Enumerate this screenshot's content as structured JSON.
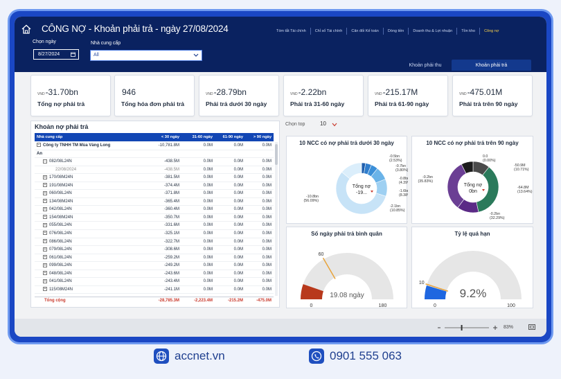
{
  "header": {
    "title": "CÔNG NỢ - Khoản phải trả - ngày 27/08/2024",
    "nav_tabs": [
      "Tóm tắt Tài chính",
      "Chỉ số Tài chính",
      "Cân đối Kế toán",
      "Dòng tiền",
      "Doanh thu & Lợi nhuận",
      "Tồn kho",
      "Công nợ"
    ]
  },
  "filters": {
    "date_label": "Chọn ngày",
    "date_value": "8/27/2024",
    "supplier_label": "Nhà cung cấp",
    "supplier_value": "All"
  },
  "subtabs": {
    "receivable": "Khoản phải thu",
    "payable": "Khoản phải trả"
  },
  "kpis": [
    {
      "unit": "VND",
      "value": "-31.70bn",
      "label": "Tổng nợ phải trả"
    },
    {
      "unit": "",
      "value": "946",
      "label": "Tổng hóa đơn phải trả"
    },
    {
      "unit": "VND",
      "value": "-28.79bn",
      "label": "Phải trả dưới 30 ngày"
    },
    {
      "unit": "VND",
      "value": "-2.22bn",
      "label": "Phải trả 31-60 ngày"
    },
    {
      "unit": "VND",
      "value": "-215.17M",
      "label": "Phải trả 61-90 ngày"
    },
    {
      "unit": "VND",
      "value": "-475.01M",
      "label": "Phải trả trên 90 ngày"
    }
  ],
  "table": {
    "title": "Khoản nợ phải trả",
    "columns": [
      "Nhà cung cấp",
      "< 30 ngày",
      "31-60 ngày",
      "61-90 ngày",
      "> 90 ngày"
    ],
    "rows": [
      {
        "level": 0,
        "icon": "−",
        "cells": [
          "Công ty TNHH TM Mùa Vàng Long",
          "-10,781.8M",
          "0.0M",
          "0.0M",
          "0.0M"
        ]
      },
      {
        "level": 0,
        "icon": "",
        "cells": [
          "An",
          "",
          "",
          "",
          ""
        ]
      },
      {
        "level": 1,
        "icon": "−",
        "cells": [
          "082/08L24N",
          "-438.5M",
          "0.0M",
          "0.0M",
          "0.0M"
        ]
      },
      {
        "level": 2,
        "icon": "",
        "cells": [
          "22/08/2024",
          "-438.5M",
          "0.0M",
          "0.0M",
          "0.0M"
        ]
      },
      {
        "level": 1,
        "icon": "+",
        "cells": [
          "170/08M24N",
          "-381.5M",
          "0.0M",
          "0.0M",
          "0.0M"
        ]
      },
      {
        "level": 1,
        "icon": "+",
        "cells": [
          "191/08M24N",
          "-374.4M",
          "0.0M",
          "0.0M",
          "0.0M"
        ]
      },
      {
        "level": 1,
        "icon": "+",
        "cells": [
          "060/08L24N",
          "-371.8M",
          "0.0M",
          "0.0M",
          "0.0M"
        ]
      },
      {
        "level": 1,
        "icon": "+",
        "cells": [
          "134/08M24N",
          "-365.4M",
          "0.0M",
          "0.0M",
          "0.0M"
        ]
      },
      {
        "level": 1,
        "icon": "+",
        "cells": [
          "042/08L24N",
          "-360.4M",
          "0.0M",
          "0.0M",
          "0.0M"
        ]
      },
      {
        "level": 1,
        "icon": "+",
        "cells": [
          "154/08M24N",
          "-350.7M",
          "0.0M",
          "0.0M",
          "0.0M"
        ]
      },
      {
        "level": 1,
        "icon": "+",
        "cells": [
          "055/08L24N",
          "-331.6M",
          "0.0M",
          "0.0M",
          "0.0M"
        ]
      },
      {
        "level": 1,
        "icon": "+",
        "cells": [
          "076/08L24N",
          "-325.1M",
          "0.0M",
          "0.0M",
          "0.0M"
        ]
      },
      {
        "level": 1,
        "icon": "+",
        "cells": [
          "086/08L24N",
          "-322.7M",
          "0.0M",
          "0.0M",
          "0.0M"
        ]
      },
      {
        "level": 1,
        "icon": "+",
        "cells": [
          "079/08L24N",
          "-308.6M",
          "0.0M",
          "0.0M",
          "0.0M"
        ]
      },
      {
        "level": 1,
        "icon": "+",
        "cells": [
          "061/08L24N",
          "-259.2M",
          "0.0M",
          "0.0M",
          "0.0M"
        ]
      },
      {
        "level": 1,
        "icon": "+",
        "cells": [
          "099/08L24N",
          "-249.2M",
          "0.0M",
          "0.0M",
          "0.0M"
        ]
      },
      {
        "level": 1,
        "icon": "+",
        "cells": [
          "048/08L24N",
          "-243.6M",
          "0.0M",
          "0.0M",
          "0.0M"
        ]
      },
      {
        "level": 1,
        "icon": "+",
        "cells": [
          "041/08L24N",
          "-243.4M",
          "0.0M",
          "0.0M",
          "0.0M"
        ]
      },
      {
        "level": 1,
        "icon": "+",
        "cells": [
          "115/08M24N",
          "-241.1M",
          "0.0M",
          "0.0M",
          "0.0M"
        ]
      }
    ],
    "total": [
      "Tổng cộng",
      "-28,785.3M",
      "-2,223.4M",
      "-215.2M",
      "-475.0M"
    ]
  },
  "top_selector": {
    "label": "Chọn top",
    "value": "10"
  },
  "charts": {
    "donut_under30": {
      "title": "10 NCC có nợ phải trả dưới 30 ngày",
      "center_label": "Tổng nợ",
      "center_value": "-19...",
      "colors": [
        "#1f5fad",
        "#2f7dcc",
        "#3b8fd8",
        "#6ab3e8",
        "#9ed0f2",
        "#c7e3f7",
        "#dbeefb"
      ],
      "labels": [
        "-0.5bn (2.53%)",
        "-0.7bn (3.80%)",
        "-0.8bn (4.39%)",
        "-1.6bn (8.38%)",
        "-2.1bn (10.85%)",
        "-10.8bn (56.09%)"
      ]
    },
    "donut_over90": {
      "title": "10 NCC có nợ phải trả trên 90 ngày",
      "center_label": "Tổng nợ",
      "center_value": "0bn",
      "colors": [
        "#1c1c1c",
        "#4a4a4a",
        "#2b7a5b",
        "#5b2a86",
        "#6b3f94"
      ],
      "labels": [
        "0.0 (0.00%)",
        "-50.9M (10.71%)",
        "-0.2bn (35.83%)",
        "-64.8M (13.64%)",
        "-0.2bn (32.29%)"
      ]
    },
    "gauge_days": {
      "title": "Số ngày phải trả bình quân",
      "value": 19.08,
      "value_text": "19.08 ngày",
      "min": 0,
      "max": 180,
      "target": 60,
      "min_text": "0",
      "max_text": "180",
      "target_text": "60",
      "fill_color": "#b8391c",
      "track_color": "#e6e6e6"
    },
    "gauge_overdue": {
      "title": "Tỷ lệ quá hạn",
      "value": 9.2,
      "value_text": "9.2%",
      "min": 0,
      "max": 100,
      "target": 10,
      "min_text": "0",
      "max_text": "100",
      "target_text": "10",
      "fill_color": "#1f67e0",
      "track_color": "#e6e6e6"
    }
  },
  "statusbar": {
    "zoom": "83%",
    "zoom_value": 83
  },
  "footer": {
    "website": "accnet.vn",
    "phone": "0901 555 063"
  }
}
